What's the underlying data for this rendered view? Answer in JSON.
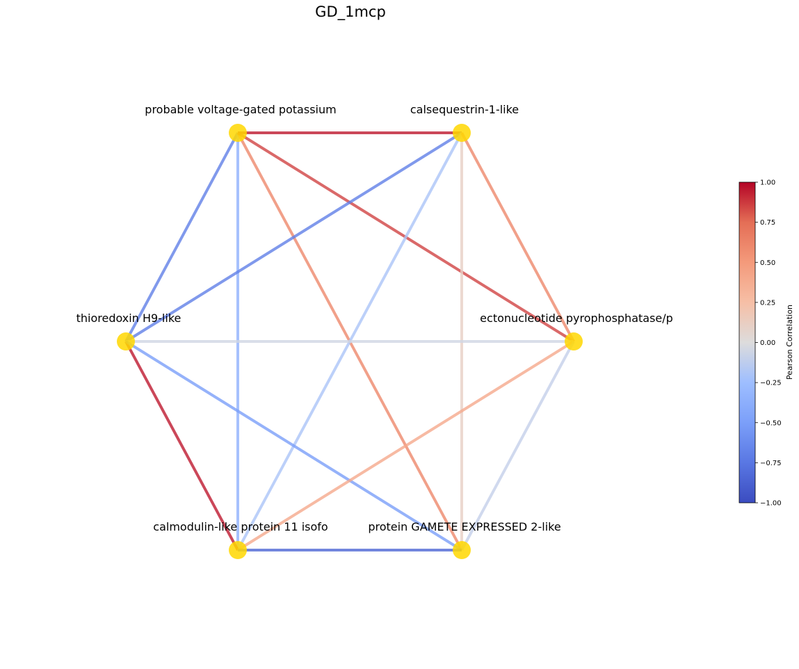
{
  "title": "GD_1mcp",
  "nodes": [
    {
      "id": "pvgp",
      "label": "probable voltage-gated potassium",
      "color": "#FFD700"
    },
    {
      "id": "csq",
      "label": "calsequestrin-1-like",
      "color": "#FFD700"
    },
    {
      "id": "trx",
      "label": "thioredoxin H9-like",
      "color": "#FFD700"
    },
    {
      "id": "enpp",
      "label": "ectonucleotide pyrophosphatase/p",
      "color": "#FFD700"
    },
    {
      "id": "cml",
      "label": "calmodulin-like protein 11 isofo",
      "color": "#FFD700"
    },
    {
      "id": "gex2",
      "label": "protein GAMETE EXPRESSED 2-like",
      "color": "#FFD700"
    }
  ],
  "edges": [
    {
      "source": "pvgp",
      "target": "csq",
      "correlation": 0.95
    },
    {
      "source": "pvgp",
      "target": "trx",
      "correlation": -0.7
    },
    {
      "source": "pvgp",
      "target": "cml",
      "correlation": -0.35
    },
    {
      "source": "pvgp",
      "target": "gex2",
      "correlation": 0.6
    },
    {
      "source": "pvgp",
      "target": "enpp",
      "correlation": 0.85
    },
    {
      "source": "csq",
      "target": "trx",
      "correlation": -0.7
    },
    {
      "source": "csq",
      "target": "cml",
      "correlation": -0.2
    },
    {
      "source": "csq",
      "target": "gex2",
      "correlation": 0.1
    },
    {
      "source": "csq",
      "target": "enpp",
      "correlation": 0.6
    },
    {
      "source": "trx",
      "target": "enpp",
      "correlation": -0.05
    },
    {
      "source": "trx",
      "target": "cml",
      "correlation": 0.95
    },
    {
      "source": "trx",
      "target": "gex2",
      "correlation": -0.5
    },
    {
      "source": "enpp",
      "target": "cml",
      "correlation": 0.4
    },
    {
      "source": "enpp",
      "target": "gex2",
      "correlation": -0.1
    },
    {
      "source": "cml",
      "target": "gex2",
      "correlation": -0.85
    }
  ],
  "colorbar": {
    "label": "Pearson Correlation",
    "ticks": [
      "1.00",
      "0.75",
      "0.50",
      "0.25",
      "0.00",
      "−0.25",
      "−0.50",
      "−0.75",
      "−1.00"
    ],
    "range": [
      -1,
      1
    ],
    "colormap": "coolwarm"
  }
}
